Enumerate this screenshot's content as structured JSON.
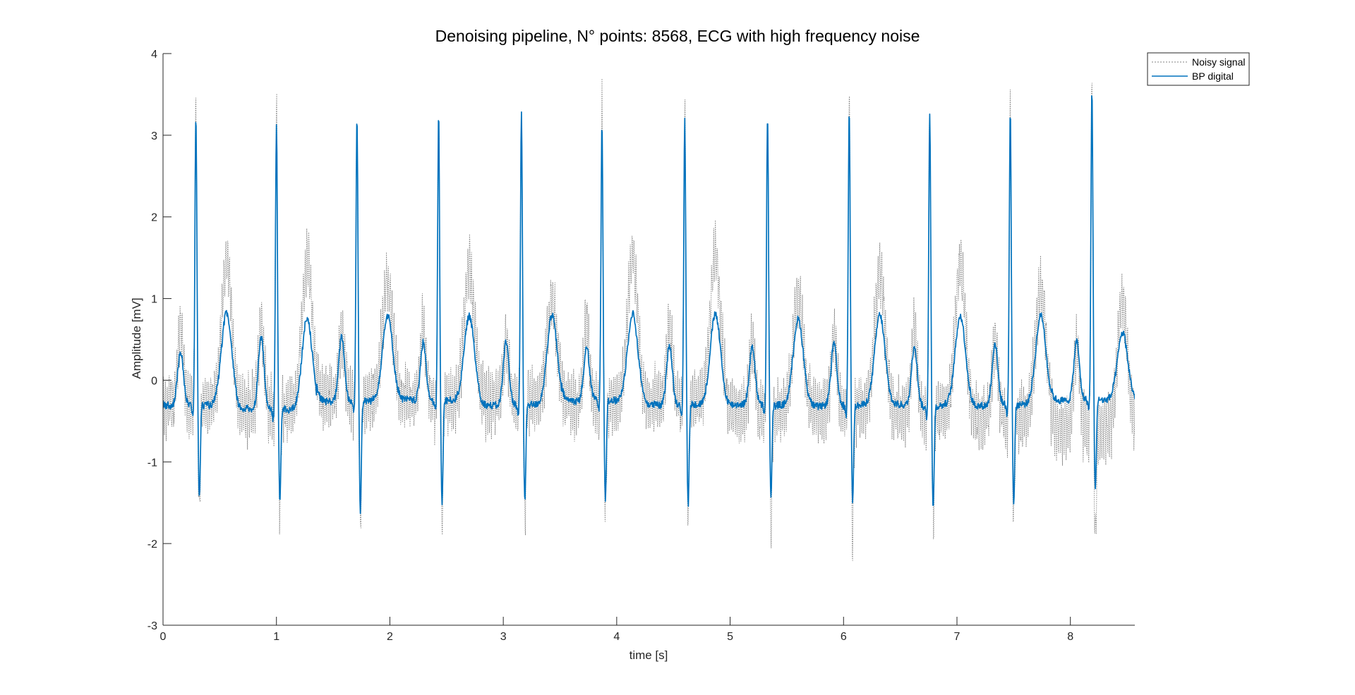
{
  "chart_data": {
    "type": "line",
    "title": "Denoising pipeline, N° points: 8568, ECG with high frequency noise",
    "xlabel": "time [s]",
    "ylabel": "Amplitude [mV]",
    "xlim": [
      0,
      8.568
    ],
    "ylim": [
      -3,
      4
    ],
    "xticks": [
      0,
      1,
      2,
      3,
      4,
      5,
      6,
      7,
      8
    ],
    "yticks": [
      -3,
      -2,
      -1,
      0,
      1,
      2,
      3,
      4
    ],
    "xtick_labels": [
      "0",
      "1",
      "2",
      "3",
      "4",
      "5",
      "6",
      "7",
      "8"
    ],
    "ytick_labels": [
      "-3",
      "-2",
      "-1",
      "0",
      "1",
      "2",
      "3",
      "4"
    ],
    "grid": false,
    "legend_position": "top-right",
    "series": [
      {
        "name": "Noisy signal",
        "style": "dotted",
        "color": "#808080",
        "sample_rate_hz": 1000,
        "r_peaks_s": [
          0.29,
          1.0,
          1.71,
          2.43,
          3.16,
          3.87,
          4.6,
          5.33,
          6.05,
          6.76,
          7.47,
          8.19
        ],
        "r_peak_amplitudes_mV": [
          3.3,
          3.3,
          3.25,
          3.25,
          3.3,
          3.3,
          3.3,
          3.25,
          3.35,
          3.3,
          3.25,
          3.45
        ],
        "s_wave_min_mV": [
          -1.65,
          -1.5,
          -1.85,
          -1.6,
          -1.7,
          -1.55,
          -1.55,
          -1.7,
          -1.9,
          -1.7,
          -1.7,
          -2.0
        ],
        "t_wave_max_mV": [
          1.45,
          1.5,
          1.2,
          1.4,
          0.95,
          1.55,
          1.5,
          1.05,
          1.35,
          1.4,
          1.1,
          0.95
        ],
        "baseline_mV": [
          -0.3,
          -0.35,
          -0.2,
          -0.25,
          -0.25,
          -0.3,
          -0.25,
          -0.4,
          -0.35,
          -0.4,
          -0.45,
          -0.6
        ],
        "noise_peak_to_peak_mV": 0.8
      },
      {
        "name": "BP digital",
        "style": "solid",
        "color": "#0072BD",
        "sample_rate_hz": 1000,
        "r_peaks_s": [
          0.29,
          1.0,
          1.71,
          2.43,
          3.16,
          3.87,
          4.6,
          5.33,
          6.05,
          6.76,
          7.47,
          8.19
        ],
        "r_peak_amplitudes_mV": [
          3.25,
          3.15,
          3.25,
          3.25,
          3.27,
          3.17,
          3.17,
          3.27,
          3.35,
          3.33,
          3.3,
          3.55
        ],
        "s_wave_min_mV": [
          -1.45,
          -1.45,
          -1.6,
          -1.52,
          -1.5,
          -1.47,
          -1.55,
          -1.45,
          -1.47,
          -1.57,
          -1.53,
          -1.37
        ],
        "t_wave_max_mV": [
          0.82,
          0.8,
          0.8,
          0.78,
          0.8,
          0.8,
          0.82,
          0.75,
          0.8,
          0.8,
          0.78,
          0.57
        ],
        "p_wave_max_mV": [
          0.37,
          0.55,
          0.55,
          0.47,
          0.47,
          0.4,
          0.45,
          0.42,
          0.45,
          0.45,
          0.47,
          0.47
        ],
        "baseline_mV": [
          -0.3,
          -0.35,
          -0.25,
          -0.25,
          -0.3,
          -0.25,
          -0.3,
          -0.3,
          -0.3,
          -0.3,
          -0.3,
          -0.25
        ]
      }
    ]
  }
}
